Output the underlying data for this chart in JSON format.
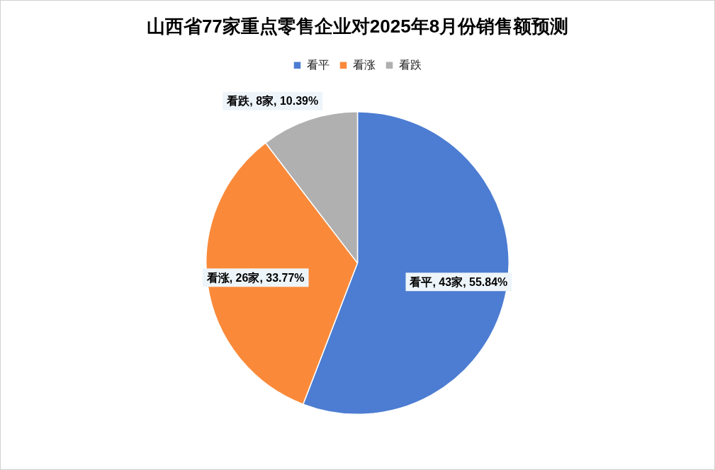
{
  "chart_data": {
    "type": "pie",
    "title": "山西省77家重点零售企业对2025年8月份销售额预测",
    "categories": [
      "看平",
      "看涨",
      "看跌"
    ],
    "values": [
      43,
      26,
      8
    ],
    "colors": [
      "#4d7dd2",
      "#fa8a3a",
      "#b0b0b0"
    ],
    "value_labels": [
      "看平, 43家, 55.84%",
      "看涨, 26家, 33.77%",
      "看跌, 8家, 10.39%"
    ],
    "legend": "top"
  }
}
